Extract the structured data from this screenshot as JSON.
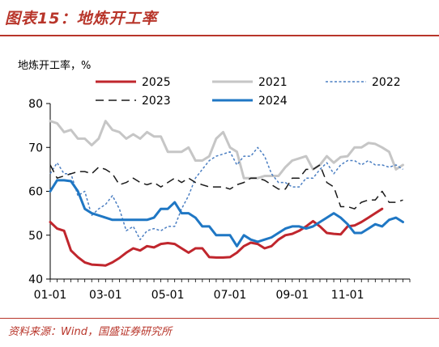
{
  "figure": {
    "title": "图表15：地炼开工率",
    "unit_label": "地炼开工率，%",
    "source": "资料来源：Wind，国盛证券研究所"
  },
  "chart_data": {
    "type": "line",
    "ylim": [
      40,
      80
    ],
    "yticks": [
      40,
      50,
      60,
      70,
      80
    ],
    "xticks": [
      "01-01",
      "03-01",
      "05-01",
      "07-01",
      "09-01",
      "11-01"
    ],
    "x_unit": "ISO week (1–52), ticks at first week of the month",
    "x_tick_weeks": [
      1,
      9,
      18,
      27,
      36,
      44
    ],
    "grid": false,
    "legend_position": "top",
    "series": [
      {
        "name": "2025",
        "color": "#c0262d",
        "style": "solid",
        "width": 3,
        "x": [
          1,
          2,
          3,
          4,
          5,
          6,
          7,
          8,
          9,
          10,
          11,
          12,
          13,
          14,
          15,
          16,
          17,
          18,
          19,
          20,
          21,
          22,
          23,
          24,
          25,
          26,
          27,
          28,
          29,
          30,
          31,
          32,
          33,
          34,
          35,
          36,
          37,
          38,
          39,
          40,
          41,
          42,
          43,
          44,
          45,
          46,
          47,
          48,
          49
        ],
        "values": [
          53,
          51.5,
          51,
          46.5,
          45,
          43.8,
          43.3,
          43.2,
          43.1,
          43.8,
          44.8,
          46,
          47,
          46.5,
          47.5,
          47.2,
          48,
          48.2,
          48,
          47,
          46,
          47,
          47,
          45,
          44.9,
          44.9,
          45,
          46,
          47.5,
          48.3,
          48,
          47,
          47.5,
          49,
          50,
          50.3,
          51,
          52,
          53.2,
          52,
          50.5,
          50.3,
          50.2,
          52,
          52.2,
          53,
          54,
          55,
          56
        ]
      },
      {
        "name": "2021",
        "color": "#c6c6c6",
        "style": "solid",
        "width": 3,
        "x": [
          1,
          2,
          3,
          4,
          5,
          6,
          7,
          8,
          9,
          10,
          11,
          12,
          13,
          14,
          15,
          16,
          17,
          18,
          19,
          20,
          21,
          22,
          23,
          24,
          25,
          26,
          27,
          28,
          29,
          30,
          31,
          32,
          33,
          34,
          35,
          36,
          37,
          38,
          39,
          40,
          41,
          42,
          43,
          44,
          45,
          46,
          47,
          48,
          49,
          50,
          51,
          52
        ],
        "values": [
          76,
          75.5,
          73.5,
          74,
          72,
          72,
          70.5,
          72,
          76,
          74,
          73.5,
          72,
          73,
          72,
          73.5,
          72.5,
          72.5,
          69,
          69,
          69,
          70,
          67,
          67,
          68,
          72,
          73.5,
          70,
          69,
          63,
          63,
          63,
          63.5,
          63.5,
          63.5,
          65.5,
          67,
          67.5,
          68,
          65,
          66,
          68,
          66.5,
          67.8,
          68,
          70,
          70,
          71,
          70.8,
          70,
          69,
          65,
          66
        ]
      },
      {
        "name": "2022",
        "color": "#4a7ec2",
        "style": "dotted",
        "width": 1.5,
        "x": [
          1,
          2,
          3,
          4,
          5,
          6,
          7,
          8,
          9,
          10,
          11,
          12,
          13,
          14,
          15,
          16,
          17,
          18,
          19,
          20,
          21,
          22,
          23,
          24,
          25,
          26,
          27,
          28,
          29,
          30,
          31,
          32,
          33,
          34,
          35,
          36,
          37,
          38,
          39,
          40,
          41,
          42,
          43,
          44,
          45,
          46,
          47,
          48,
          49,
          50,
          51,
          52
        ],
        "values": [
          64,
          66.5,
          64,
          64,
          59,
          60,
          54.5,
          56,
          57,
          59,
          56,
          51,
          52,
          49,
          51,
          51.5,
          51,
          52,
          52,
          56,
          59,
          63,
          65,
          67,
          68,
          68.5,
          69,
          66,
          68,
          68,
          70,
          68,
          64,
          62,
          62,
          61,
          61,
          63,
          63,
          65,
          66.5,
          64,
          66,
          67,
          67,
          66,
          67,
          66,
          66,
          65.5,
          66,
          65
        ]
      },
      {
        "name": "2023",
        "color": "#1a1a1a",
        "style": "dashed",
        "width": 1.5,
        "x": [
          1,
          2,
          3,
          4,
          5,
          6,
          7,
          8,
          9,
          10,
          11,
          12,
          13,
          14,
          15,
          16,
          17,
          18,
          19,
          20,
          21,
          22,
          23,
          24,
          25,
          26,
          27,
          28,
          29,
          30,
          31,
          32,
          33,
          34,
          35,
          36,
          37,
          38,
          39,
          40,
          41,
          42,
          43,
          44,
          45,
          46,
          47,
          48,
          49,
          50,
          51,
          52
        ],
        "values": [
          66,
          63,
          63.5,
          64,
          64.5,
          64.5,
          64,
          65.5,
          65,
          64,
          61.5,
          62,
          63,
          62,
          61.5,
          62,
          61,
          62,
          63,
          62,
          63,
          62,
          61.5,
          61,
          61,
          61,
          60.5,
          61.5,
          62,
          63,
          63,
          62.5,
          61.5,
          60.5,
          60.5,
          63,
          63,
          65,
          65,
          66,
          62,
          61,
          56.5,
          56.5,
          56,
          57.5,
          58,
          58,
          60,
          57.5,
          57.5,
          58
        ]
      },
      {
        "name": "2024",
        "color": "#1f77c4",
        "style": "solid",
        "width": 3,
        "x": [
          1,
          2,
          3,
          4,
          5,
          6,
          7,
          8,
          9,
          10,
          11,
          12,
          13,
          14,
          15,
          16,
          17,
          18,
          19,
          20,
          21,
          22,
          23,
          24,
          25,
          26,
          27,
          28,
          29,
          30,
          31,
          32,
          33,
          34,
          35,
          36,
          37,
          38,
          39,
          40,
          41,
          42,
          43,
          44,
          45,
          46,
          47,
          48,
          49,
          50,
          51,
          52
        ],
        "values": [
          60,
          62.5,
          62.5,
          62.3,
          60,
          56,
          55,
          54.5,
          54,
          53.5,
          53.5,
          53.5,
          53.5,
          53.5,
          53.5,
          54,
          56,
          56,
          57.5,
          55,
          55,
          54,
          52,
          52,
          50,
          50,
          50,
          47.5,
          50,
          49,
          48.5,
          49,
          49.5,
          50.5,
          51.5,
          52,
          52,
          51.5,
          52,
          53,
          54,
          55,
          54,
          52.5,
          50.5,
          50.5,
          51.5,
          52.5,
          52,
          53.5,
          54,
          53
        ]
      }
    ]
  }
}
